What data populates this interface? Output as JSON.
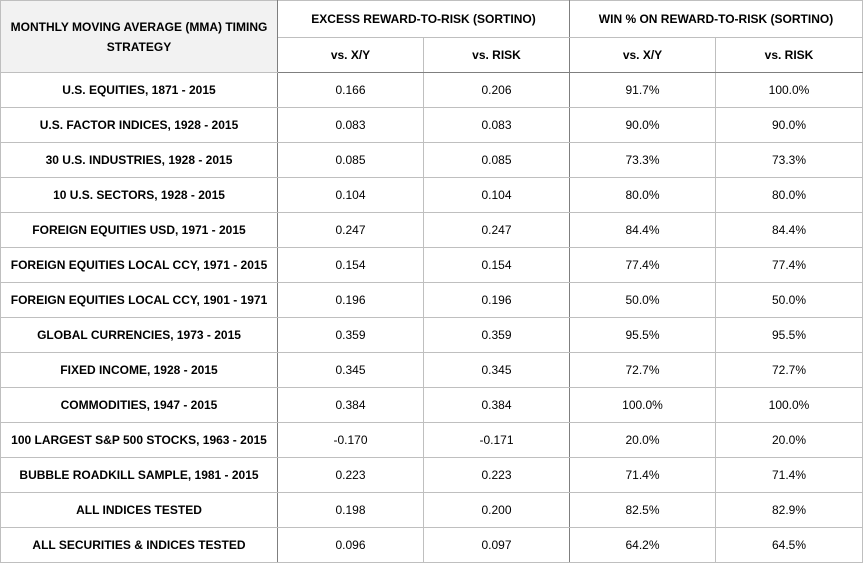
{
  "header": {
    "corner_title": "MONTHLY MOVING AVERAGE (MMA) TIMING STRATEGY",
    "group1": "EXCESS REWARD-TO-RISK (SORTINO)",
    "group2": "WIN % ON REWARD-TO-RISK (SORTINO)",
    "sub_cols": [
      "vs. X/Y",
      "vs. RISK",
      "vs. X/Y",
      "vs. RISK"
    ]
  },
  "rows": [
    {
      "label": "U.S. EQUITIES, 1871 - 2015",
      "excess_xy": "0.166",
      "excess_risk": "0.206",
      "win_xy": "91.7%",
      "win_risk": "100.0%"
    },
    {
      "label": "U.S. FACTOR INDICES, 1928 - 2015",
      "excess_xy": "0.083",
      "excess_risk": "0.083",
      "win_xy": "90.0%",
      "win_risk": "90.0%"
    },
    {
      "label": "30 U.S. INDUSTRIES, 1928 - 2015",
      "excess_xy": "0.085",
      "excess_risk": "0.085",
      "win_xy": "73.3%",
      "win_risk": "73.3%"
    },
    {
      "label": "10 U.S. SECTORS, 1928 - 2015",
      "excess_xy": "0.104",
      "excess_risk": "0.104",
      "win_xy": "80.0%",
      "win_risk": "80.0%"
    },
    {
      "label": "FOREIGN EQUITIES USD, 1971 - 2015",
      "excess_xy": "0.247",
      "excess_risk": "0.247",
      "win_xy": "84.4%",
      "win_risk": "84.4%"
    },
    {
      "label": "FOREIGN EQUITIES LOCAL CCY, 1971 - 2015",
      "excess_xy": "0.154",
      "excess_risk": "0.154",
      "win_xy": "77.4%",
      "win_risk": "77.4%"
    },
    {
      "label": "FOREIGN EQUITIES LOCAL CCY, 1901 - 1971",
      "excess_xy": "0.196",
      "excess_risk": "0.196",
      "win_xy": "50.0%",
      "win_risk": "50.0%"
    },
    {
      "label": "GLOBAL CURRENCIES, 1973 - 2015",
      "excess_xy": "0.359",
      "excess_risk": "0.359",
      "win_xy": "95.5%",
      "win_risk": "95.5%"
    },
    {
      "label": "FIXED INCOME, 1928 - 2015",
      "excess_xy": "0.345",
      "excess_risk": "0.345",
      "win_xy": "72.7%",
      "win_risk": "72.7%"
    },
    {
      "label": "COMMODITIES, 1947 - 2015",
      "excess_xy": "0.384",
      "excess_risk": "0.384",
      "win_xy": "100.0%",
      "win_risk": "100.0%"
    },
    {
      "label": "100 LARGEST S&P 500 STOCKS, 1963 - 2015",
      "excess_xy": "-0.170",
      "excess_risk": "-0.171",
      "win_xy": "20.0%",
      "win_risk": "20.0%"
    },
    {
      "label": "BUBBLE ROADKILL SAMPLE, 1981 - 2015",
      "excess_xy": "0.223",
      "excess_risk": "0.223",
      "win_xy": "71.4%",
      "win_risk": "71.4%"
    },
    {
      "label": "ALL INDICES TESTED",
      "excess_xy": "0.198",
      "excess_risk": "0.200",
      "win_xy": "82.5%",
      "win_risk": "82.9%"
    },
    {
      "label": "ALL SECURITIES & INDICES TESTED",
      "excess_xy": "0.096",
      "excess_risk": "0.097",
      "win_xy": "64.2%",
      "win_risk": "64.5%"
    }
  ]
}
